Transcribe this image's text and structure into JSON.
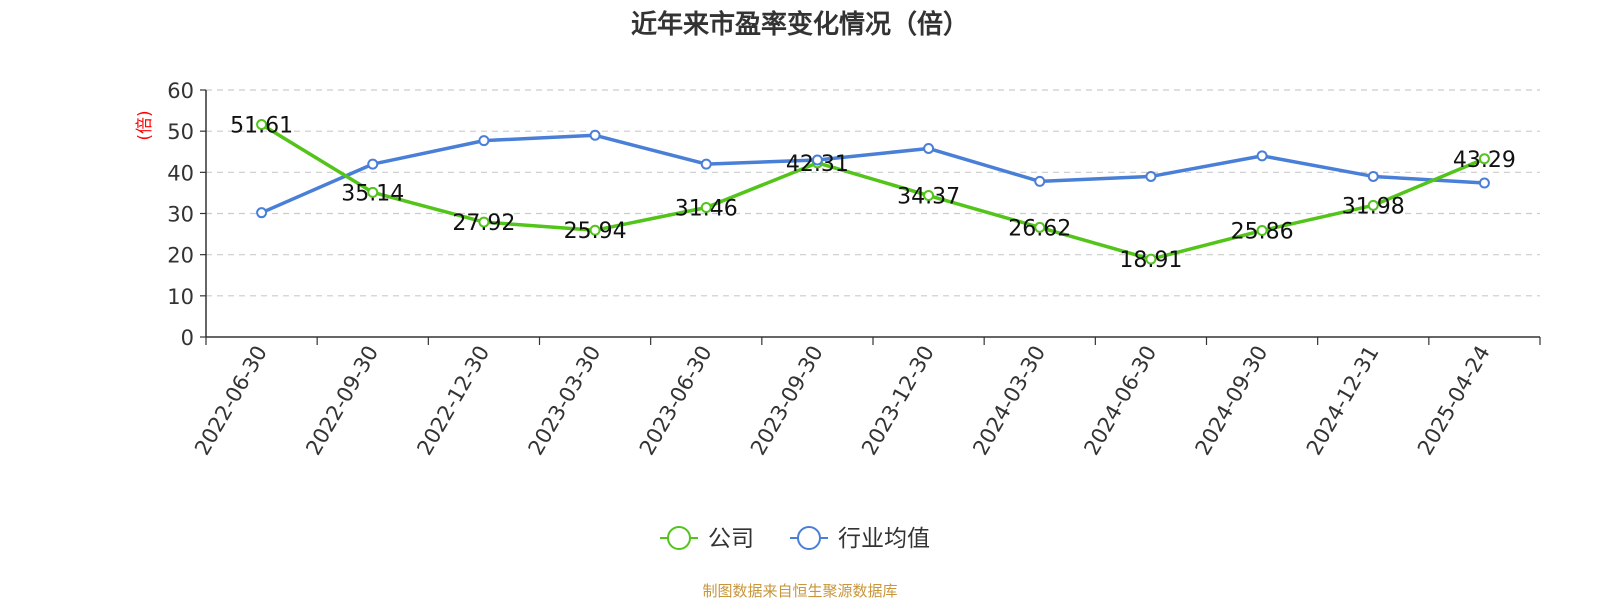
{
  "title": "近年来市盈率变化情况（倍）",
  "source": "制图数据来自恒生聚源数据库",
  "chart_data": {
    "type": "line",
    "title": "近年来市盈率变化情况（倍）",
    "ylabel": "(倍)",
    "ylabel_color": "#ff0000",
    "ylim": [
      0,
      60
    ],
    "yticks": [
      0,
      10,
      20,
      30,
      40,
      50,
      60
    ],
    "grid": true,
    "legend_position": "bottom",
    "categories": [
      "2022-06-30",
      "2022-09-30",
      "2022-12-30",
      "2023-03-30",
      "2023-06-30",
      "2023-09-30",
      "2023-12-30",
      "2024-03-30",
      "2024-06-30",
      "2024-09-30",
      "2024-12-31",
      "2025-04-24"
    ],
    "series": [
      {
        "name": "公司",
        "color": "#52c41a",
        "show_labels": true,
        "values": [
          51.61,
          35.14,
          27.92,
          25.94,
          31.46,
          42.31,
          34.37,
          26.62,
          18.91,
          25.86,
          31.98,
          43.29
        ],
        "labels": [
          "51.61",
          "35.14",
          "27.92",
          "25.94",
          "31.46",
          "42.31",
          "34.37",
          "26.62",
          "18.91",
          "25.86",
          "31.98",
          "43.29"
        ]
      },
      {
        "name": "行业均值",
        "color": "#4a7fd8",
        "show_labels": false,
        "values": [
          30.2,
          42.0,
          47.7,
          49.0,
          42.0,
          43.0,
          45.8,
          37.8,
          39.0,
          44.0,
          39.0,
          37.4
        ]
      }
    ]
  }
}
